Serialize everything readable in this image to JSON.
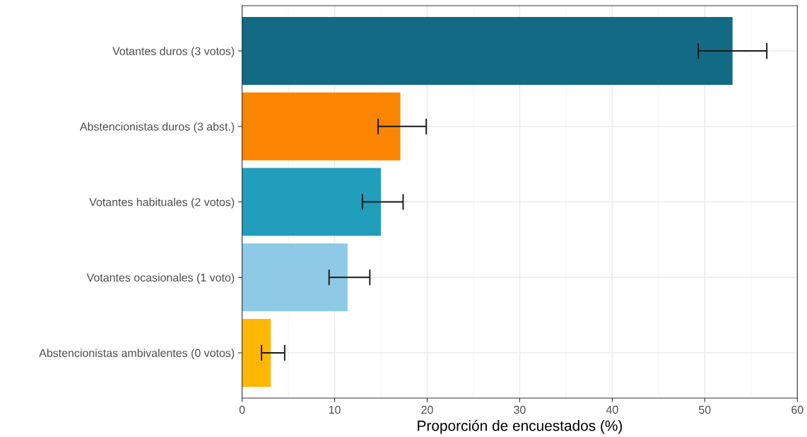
{
  "chart_data": {
    "type": "bar",
    "orientation": "horizontal",
    "categories": [
      "Votantes duros (3 votos)",
      "Abstencionistas duros (3 abst.)",
      "Votantes habituales (2 votos)",
      "Votantes ocasionales (1 voto)",
      "Abstencionistas ambivalentes (0 votos)"
    ],
    "values": [
      53.0,
      17.1,
      15.0,
      11.4,
      3.1
    ],
    "errors": [
      [
        49.3,
        56.7
      ],
      [
        14.7,
        19.9
      ],
      [
        13.0,
        17.4
      ],
      [
        9.4,
        13.8
      ],
      [
        2.1,
        4.6
      ]
    ],
    "colors": [
      "#136a85",
      "#fb8500",
      "#219ebc",
      "#8ecae6",
      "#ffb703"
    ],
    "xlabel": "Proporción de encuestados (%)",
    "xlim": [
      0,
      60
    ],
    "xticks": [
      0,
      10,
      20,
      30,
      40,
      50,
      60
    ],
    "grid": true
  }
}
